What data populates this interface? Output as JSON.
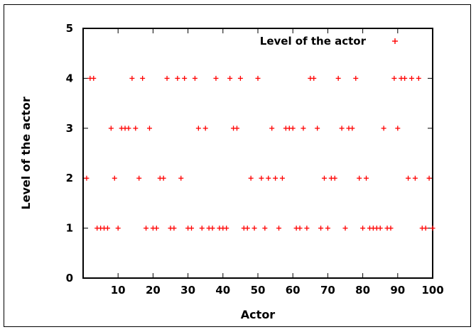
{
  "chart_data": {
    "type": "scatter",
    "title": "",
    "xlabel": "Actor",
    "ylabel": "Level of the actor",
    "xlim": [
      0,
      100
    ],
    "ylim": [
      0,
      5
    ],
    "x_ticks": [
      "10",
      "20",
      "30",
      "40",
      "50",
      "60",
      "70",
      "80",
      "90",
      "100"
    ],
    "y_ticks": [
      "0",
      "1",
      "2",
      "3",
      "4",
      "5"
    ],
    "grid": false,
    "legend_position": "top-right",
    "marker": "+",
    "color": "#ff0000",
    "series": [
      {
        "name": "Level of the actor",
        "x": [
          1,
          2,
          3,
          4,
          5,
          6,
          7,
          8,
          9,
          10,
          11,
          12,
          13,
          14,
          15,
          16,
          17,
          18,
          19,
          20,
          21,
          22,
          23,
          24,
          25,
          26,
          27,
          28,
          29,
          30,
          31,
          32,
          33,
          34,
          35,
          36,
          37,
          38,
          39,
          40,
          41,
          42,
          43,
          44,
          45,
          46,
          47,
          48,
          49,
          50,
          51,
          52,
          53,
          54,
          55,
          56,
          57,
          58,
          59,
          60,
          61,
          62,
          63,
          64,
          65,
          66,
          67,
          68,
          69,
          70,
          71,
          72,
          73,
          74,
          75,
          76,
          77,
          78,
          79,
          80,
          81,
          82,
          83,
          84,
          85,
          86,
          87,
          88,
          89,
          90,
          91,
          92,
          93,
          94,
          95,
          96,
          97,
          98,
          99,
          100
        ],
        "y": [
          2,
          4,
          4,
          1,
          1,
          1,
          1,
          3,
          2,
          1,
          3,
          3,
          3,
          4,
          3,
          2,
          4,
          1,
          3,
          1,
          1,
          2,
          2,
          4,
          1,
          1,
          4,
          2,
          4,
          1,
          1,
          4,
          3,
          1,
          3,
          1,
          1,
          4,
          1,
          1,
          1,
          4,
          3,
          3,
          4,
          1,
          1,
          2,
          1,
          4,
          2,
          1,
          2,
          3,
          2,
          1,
          2,
          3,
          3,
          3,
          1,
          1,
          3,
          1,
          4,
          4,
          3,
          1,
          2,
          1,
          2,
          2,
          4,
          3,
          1,
          3,
          3,
          4,
          2,
          1,
          2,
          1,
          1,
          1,
          1,
          3,
          1,
          1,
          4,
          3,
          4,
          4,
          2,
          4,
          2,
          4,
          1,
          1,
          2,
          1
        ]
      }
    ]
  }
}
